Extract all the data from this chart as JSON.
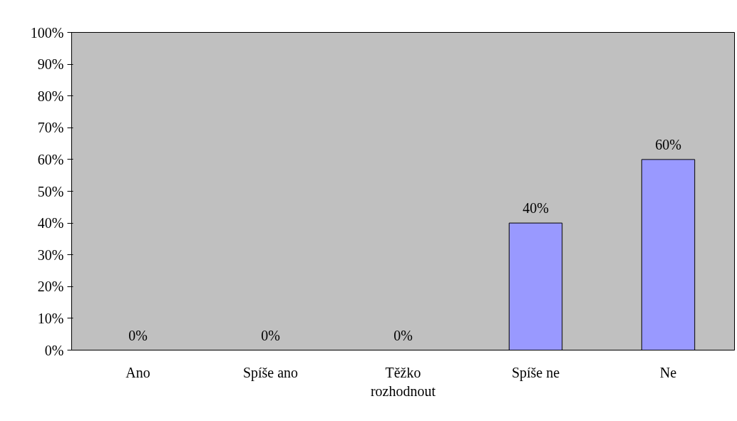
{
  "chart_data": {
    "type": "bar",
    "categories": [
      "Ano",
      "Spíše ano",
      "Těžko rozhodnout",
      "Spíše ne",
      "Ne"
    ],
    "values": [
      0,
      0,
      0,
      40,
      60
    ],
    "value_labels": [
      "0%",
      "0%",
      "0%",
      "40%",
      "60%"
    ],
    "color": "#9999ff",
    "ylim": [
      0,
      100
    ],
    "yticks": [
      {
        "value": 0,
        "label": "0%"
      },
      {
        "value": 10,
        "label": "10%"
      },
      {
        "value": 20,
        "label": "20%"
      },
      {
        "value": 30,
        "label": "30%"
      },
      {
        "value": 40,
        "label": "40%"
      },
      {
        "value": 50,
        "label": "50%"
      },
      {
        "value": 60,
        "label": "60%"
      },
      {
        "value": 70,
        "label": "70%"
      },
      {
        "value": 80,
        "label": "80%"
      },
      {
        "value": 90,
        "label": "90%"
      },
      {
        "value": 100,
        "label": "100%"
      }
    ],
    "grid": false
  }
}
